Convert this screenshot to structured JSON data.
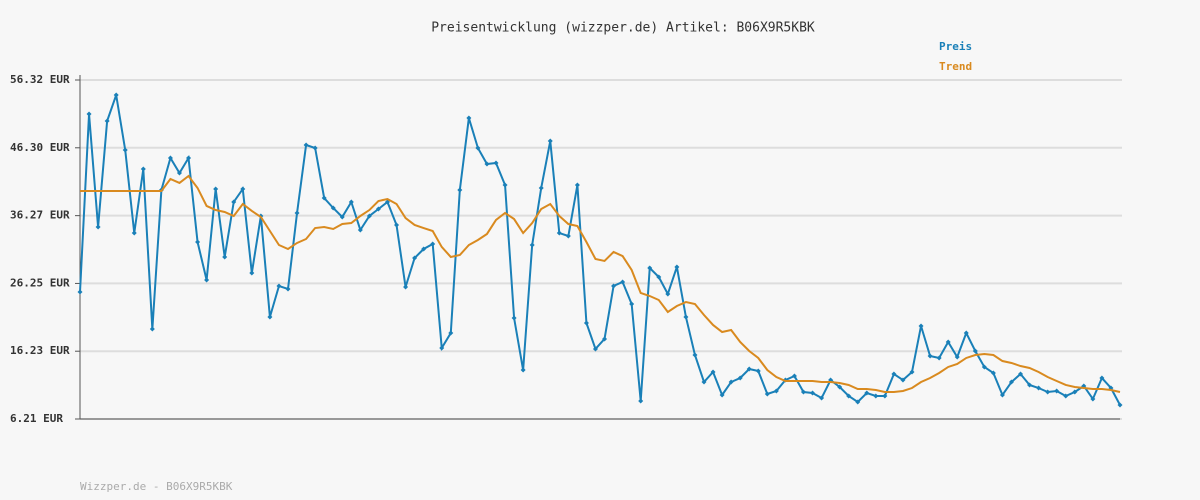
{
  "chart_data": {
    "type": "line",
    "title": "Preisentwicklung (wizzper.de) Artikel: B06X9R5KBK",
    "footer": "Wizzper.de - B06X9R5KBK",
    "ylim": [
      6.21,
      56.32
    ],
    "yticks": [
      {
        "value": 6.21,
        "label": "6.21 EUR"
      },
      {
        "value": 16.23,
        "label": "16.23 EUR"
      },
      {
        "value": 26.25,
        "label": "26.25 EUR"
      },
      {
        "value": 36.27,
        "label": "36.27 EUR"
      },
      {
        "value": 46.3,
        "label": "46.30 EUR"
      },
      {
        "value": 56.32,
        "label": "56.32 EUR"
      }
    ],
    "grid": true,
    "series": [
      {
        "name": "Preis",
        "color": "#1a80b8",
        "markers": true,
        "values": [
          24.98,
          51.29,
          34.59,
          50.26,
          54.1,
          45.97,
          33.7,
          43.17,
          19.51,
          40.06,
          44.79,
          42.57,
          44.79,
          32.37,
          26.76,
          40.21,
          30.16,
          38.29,
          40.21,
          27.79,
          36.22,
          21.29,
          25.87,
          25.43,
          36.66,
          46.71,
          46.27,
          38.88,
          37.4,
          36.07,
          38.29,
          34.15,
          36.22,
          37.25,
          38.29,
          34.89,
          25.72,
          30.01,
          31.34,
          32.08,
          16.71,
          18.92,
          40.06,
          50.7,
          46.27,
          43.9,
          44.05,
          40.8,
          21.14,
          13.45,
          31.93,
          40.36,
          47.3,
          33.7,
          33.26,
          40.8,
          20.4,
          16.56,
          18.04,
          25.87,
          26.46,
          23.21,
          8.87,
          28.53,
          27.2,
          24.69,
          28.68,
          21.29,
          15.67,
          11.68,
          13.16,
          9.76,
          11.68,
          12.27,
          13.6,
          13.31,
          9.91,
          10.35,
          11.97,
          12.57,
          10.2,
          10.05,
          9.31,
          11.97,
          10.94,
          9.61,
          8.72,
          10.05,
          9.61,
          9.61,
          12.86,
          11.97,
          13.16,
          19.96,
          15.52,
          15.23,
          17.59,
          15.37,
          18.92,
          16.26,
          13.9,
          13.01,
          9.76,
          11.68,
          12.86,
          11.24,
          10.79,
          10.2,
          10.35,
          9.61,
          10.2,
          11.09,
          9.17,
          12.27,
          10.79,
          8.28
        ]
      },
      {
        "name": "Trend",
        "color": "#d98a1f",
        "markers": false,
        "values": [
          39.91,
          39.91,
          39.91,
          39.91,
          39.91,
          39.91,
          39.91,
          39.91,
          39.91,
          39.91,
          41.69,
          41.1,
          42.13,
          40.36,
          37.7,
          37.1,
          36.81,
          36.22,
          37.99,
          36.96,
          36.07,
          34.0,
          31.93,
          31.34,
          32.23,
          32.82,
          34.44,
          34.59,
          34.3,
          35.03,
          35.18,
          36.22,
          37.1,
          38.43,
          38.73,
          37.99,
          35.92,
          34.89,
          34.44,
          34.0,
          31.64,
          30.16,
          30.45,
          31.93,
          32.67,
          33.56,
          35.63,
          36.66,
          35.77,
          33.7,
          35.18,
          37.25,
          37.99,
          36.22,
          35.03,
          34.74,
          32.37,
          29.86,
          29.57,
          30.9,
          30.3,
          28.24,
          24.84,
          24.39,
          23.8,
          22.03,
          22.91,
          23.5,
          23.21,
          21.58,
          20.11,
          19.07,
          19.37,
          17.59,
          16.26,
          15.23,
          13.45,
          12.42,
          11.83,
          11.83,
          11.83,
          11.83,
          11.68,
          11.68,
          11.53,
          11.24,
          10.64,
          10.64,
          10.5,
          10.2,
          10.2,
          10.35,
          10.79,
          11.68,
          12.27,
          13.01,
          13.9,
          14.34,
          15.23,
          15.67,
          15.82,
          15.67,
          14.78,
          14.49,
          14.04,
          13.75,
          13.16,
          12.42,
          11.83,
          11.24,
          10.94,
          10.79,
          10.64,
          10.64,
          10.5,
          10.2
        ]
      }
    ]
  }
}
